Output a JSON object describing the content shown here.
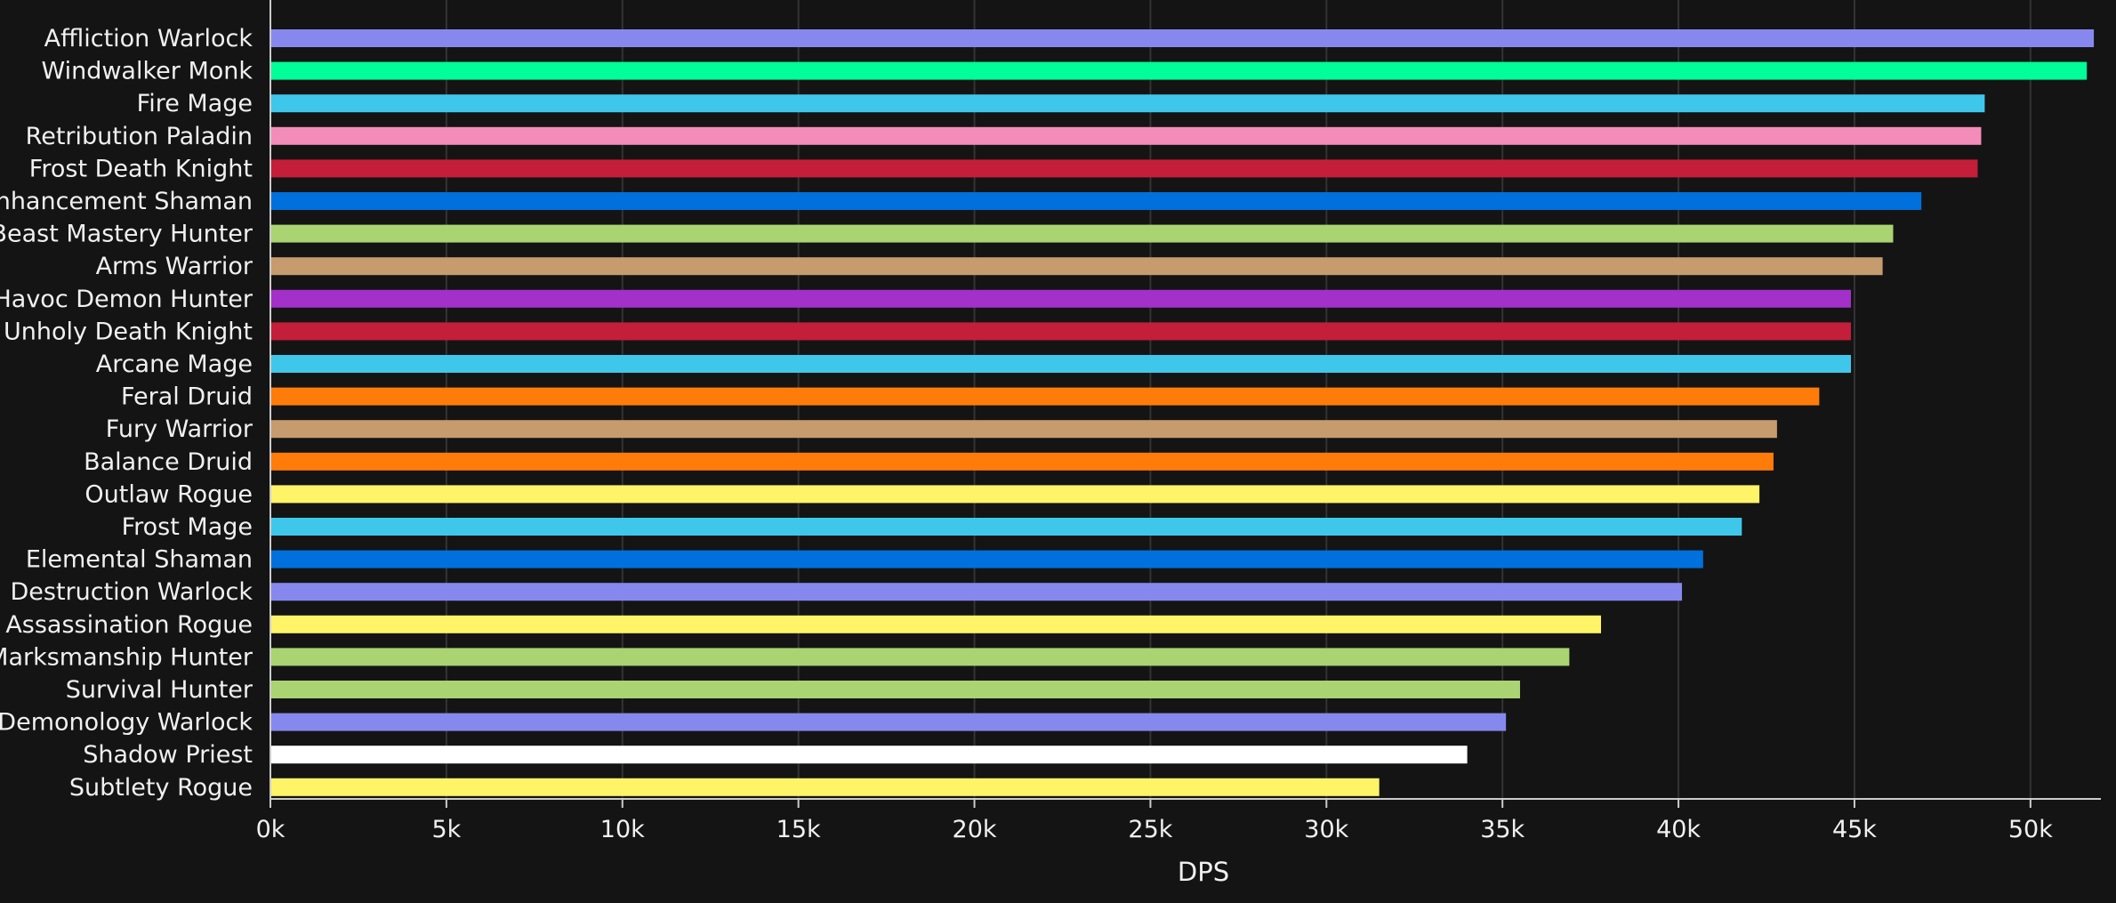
{
  "chart_data": {
    "type": "bar",
    "orientation": "horizontal",
    "title": "",
    "xlabel": "DPS",
    "ylabel": "",
    "xlim": [
      0,
      52000
    ],
    "xticks": [
      0,
      5000,
      10000,
      15000,
      20000,
      25000,
      30000,
      35000,
      40000,
      45000,
      50000
    ],
    "xtick_labels": [
      "0k",
      "5k",
      "10k",
      "15k",
      "20k",
      "25k",
      "30k",
      "35k",
      "40k",
      "45k",
      "50k"
    ],
    "grid": "vertical",
    "legend": "none",
    "background": "#141414",
    "categories": [
      "Affliction Warlock",
      "Windwalker Monk",
      "Fire Mage",
      "Retribution Paladin",
      "Frost Death Knight",
      "Enhancement Shaman",
      "Beast Mastery Hunter",
      "Arms Warrior",
      "Havoc Demon Hunter",
      "Unholy Death Knight",
      "Arcane Mage",
      "Feral Druid",
      "Fury Warrior",
      "Balance Druid",
      "Outlaw Rogue",
      "Frost Mage",
      "Elemental Shaman",
      "Destruction Warlock",
      "Assassination Rogue",
      "Marksmanship Hunter",
      "Survival Hunter",
      "Demonology Warlock",
      "Shadow Priest",
      "Subtlety Rogue"
    ],
    "values": [
      51800,
      51600,
      48700,
      48600,
      48500,
      46900,
      46100,
      45800,
      44900,
      44900,
      44900,
      44000,
      42800,
      42700,
      42300,
      41800,
      40700,
      40100,
      37800,
      36900,
      35500,
      35100,
      34000,
      31500
    ],
    "colors": [
      "#8788EE",
      "#00FF98",
      "#3FC7EB",
      "#F48CBA",
      "#C41E3A",
      "#0070DD",
      "#AAD372",
      "#C69B6D",
      "#A330C9",
      "#C41E3A",
      "#3FC7EB",
      "#FF7C0A",
      "#C69B6D",
      "#FF7C0A",
      "#FFF468",
      "#3FC7EB",
      "#0070DD",
      "#8788EE",
      "#FFF468",
      "#AAD372",
      "#AAD372",
      "#8788EE",
      "#FFFFFF",
      "#FFF468"
    ]
  }
}
